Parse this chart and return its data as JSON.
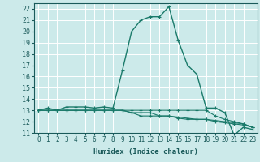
{
  "xlabel": "Humidex (Indice chaleur)",
  "background_color": "#cceaea",
  "grid_color": "#ffffff",
  "line_color": "#1a7a6a",
  "xlim": [
    -0.5,
    23.5
  ],
  "ylim": [
    11,
    22.5
  ],
  "yticks": [
    11,
    12,
    13,
    14,
    15,
    16,
    17,
    18,
    19,
    20,
    21,
    22
  ],
  "xticks": [
    0,
    1,
    2,
    3,
    4,
    5,
    6,
    7,
    8,
    9,
    10,
    11,
    12,
    13,
    14,
    15,
    16,
    17,
    18,
    19,
    20,
    21,
    22,
    23
  ],
  "series": [
    [
      13.0,
      13.2,
      13.0,
      13.3,
      13.3,
      13.3,
      13.2,
      13.3,
      13.2,
      16.5,
      20.0,
      21.0,
      21.3,
      21.3,
      22.2,
      19.2,
      17.0,
      16.2,
      13.2,
      13.2,
      12.8,
      10.8,
      11.5,
      11.3
    ],
    [
      13.0,
      13.0,
      13.0,
      13.0,
      13.0,
      13.0,
      13.0,
      13.0,
      13.0,
      13.0,
      13.0,
      13.0,
      13.0,
      13.0,
      13.0,
      13.0,
      13.0,
      13.0,
      13.0,
      12.5,
      12.2,
      12.0,
      11.8,
      11.5
    ],
    [
      13.0,
      13.0,
      13.0,
      13.0,
      13.0,
      13.0,
      13.0,
      13.0,
      13.0,
      13.0,
      12.8,
      12.8,
      12.8,
      12.5,
      12.5,
      12.4,
      12.3,
      12.2,
      12.2,
      12.1,
      12.0,
      11.9,
      11.8,
      11.5
    ],
    [
      13.0,
      13.0,
      13.0,
      13.0,
      13.0,
      13.0,
      13.0,
      13.0,
      13.0,
      13.0,
      12.8,
      12.5,
      12.5,
      12.5,
      12.5,
      12.3,
      12.2,
      12.2,
      12.2,
      12.0,
      11.9,
      11.8,
      11.7,
      11.5
    ]
  ]
}
